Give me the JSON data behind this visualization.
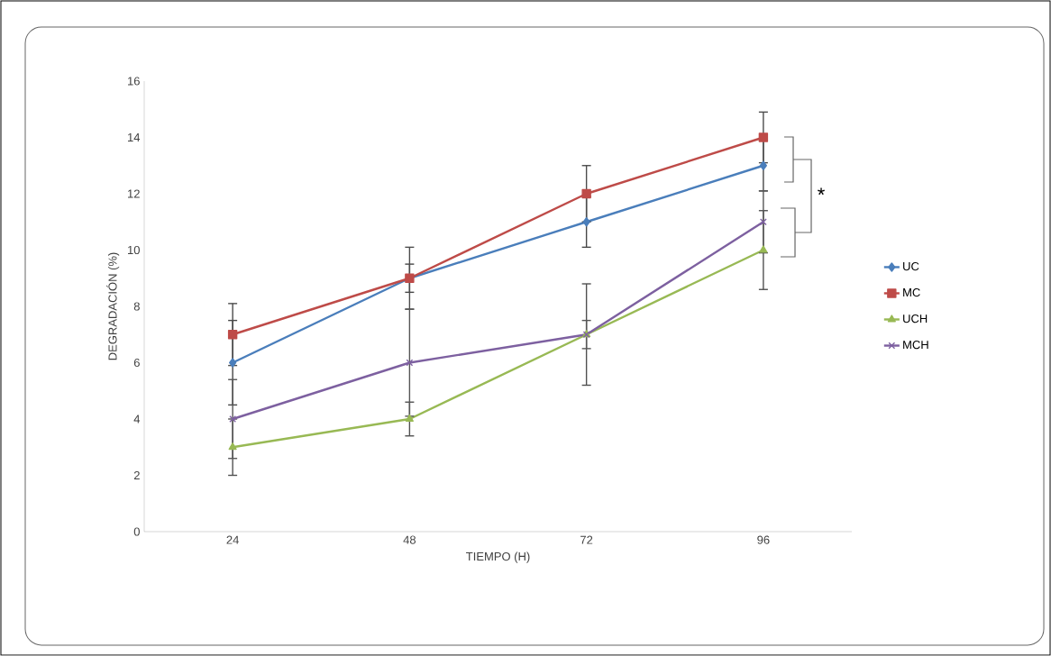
{
  "chart_data": {
    "type": "line",
    "xlabel": "TIEMPO (H)",
    "ylabel": "DEGRADACIÓN (%)",
    "categories": [
      "24",
      "48",
      "72",
      "96"
    ],
    "series": [
      {
        "name": "UC",
        "color": "#4a7ebb",
        "marker": "diamond",
        "values": [
          6,
          9,
          11,
          13
        ],
        "errors": [
          1.5,
          0.5,
          0.9,
          0.9
        ]
      },
      {
        "name": "MC",
        "color": "#be4b48",
        "marker": "square",
        "values": [
          7,
          9,
          12,
          14
        ],
        "errors": [
          1.1,
          1.1,
          1,
          0.9
        ]
      },
      {
        "name": "UCH",
        "color": "#98b954",
        "marker": "triangle",
        "values": [
          3,
          4,
          7,
          10
        ],
        "errors": [
          1,
          0.6,
          1.8,
          1.4
        ]
      },
      {
        "name": "MCH",
        "color": "#7d60a0",
        "marker": "cross",
        "values": [
          4,
          6,
          7,
          11
        ],
        "errors": [
          1.4,
          1.9,
          0.5,
          1.1
        ]
      }
    ],
    "ylim": [
      0,
      16
    ],
    "yticks": [
      0,
      2,
      4,
      6,
      8,
      10,
      12,
      14,
      16
    ],
    "grid": false,
    "legend": "right",
    "line_style": "solid",
    "annotations": [
      "*"
    ]
  }
}
